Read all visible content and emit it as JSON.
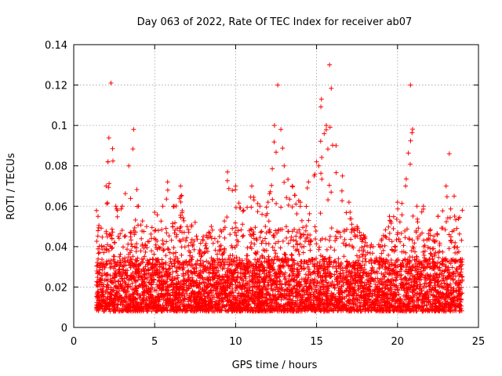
{
  "chart_data": {
    "type": "scatter",
    "title": "Day 063 of 2022, Rate Of TEC Index for receiver ab07",
    "xlabel": "GPS time / hours",
    "ylabel": "ROTI / TECUs",
    "xlim": [
      0,
      25
    ],
    "ylim": [
      0,
      0.14
    ],
    "xticks": [
      0,
      5,
      10,
      15,
      20,
      25
    ],
    "xtick_labels": [
      "0",
      "5",
      "10",
      "15",
      "20",
      "25"
    ],
    "yticks": [
      0,
      0.02,
      0.04,
      0.06,
      0.08,
      0.1,
      0.12,
      0.14
    ],
    "ytick_labels": [
      "0",
      "0.02",
      "0.04",
      "0.06",
      "0.08",
      "0.1",
      "0.12",
      "0.14"
    ],
    "grid": true,
    "marker": "+",
    "color": "#ff0000",
    "x_range_of_data": [
      1.4,
      24.0
    ],
    "envelope": [
      [
        1.5,
        0.055
      ],
      [
        2.0,
        0.07
      ],
      [
        2.3,
        0.121
      ],
      [
        2.6,
        0.06
      ],
      [
        3.0,
        0.06
      ],
      [
        3.4,
        0.08
      ],
      [
        3.7,
        0.098
      ],
      [
        4.0,
        0.06
      ],
      [
        4.5,
        0.05
      ],
      [
        5.0,
        0.057
      ],
      [
        5.5,
        0.06
      ],
      [
        5.8,
        0.072
      ],
      [
        6.2,
        0.06
      ],
      [
        6.6,
        0.07
      ],
      [
        7.0,
        0.05
      ],
      [
        7.5,
        0.052
      ],
      [
        8.0,
        0.045
      ],
      [
        8.5,
        0.05
      ],
      [
        9.0,
        0.045
      ],
      [
        9.5,
        0.077
      ],
      [
        10.0,
        0.07
      ],
      [
        10.5,
        0.058
      ],
      [
        11.0,
        0.07
      ],
      [
        11.5,
        0.06
      ],
      [
        12.0,
        0.062
      ],
      [
        12.4,
        0.1
      ],
      [
        12.6,
        0.12
      ],
      [
        13.0,
        0.08
      ],
      [
        13.5,
        0.07
      ],
      [
        14.0,
        0.062
      ],
      [
        14.5,
        0.072
      ],
      [
        15.0,
        0.082
      ],
      [
        15.3,
        0.113
      ],
      [
        15.6,
        0.1
      ],
      [
        15.8,
        0.13
      ],
      [
        16.2,
        0.09
      ],
      [
        16.6,
        0.075
      ],
      [
        17.0,
        0.062
      ],
      [
        17.5,
        0.05
      ],
      [
        18.0,
        0.045
      ],
      [
        18.5,
        0.04
      ],
      [
        19.0,
        0.043
      ],
      [
        19.5,
        0.055
      ],
      [
        20.0,
        0.062
      ],
      [
        20.5,
        0.07
      ],
      [
        20.8,
        0.12
      ],
      [
        21.2,
        0.06
      ],
      [
        21.6,
        0.06
      ],
      [
        22.0,
        0.048
      ],
      [
        22.5,
        0.055
      ],
      [
        23.0,
        0.07
      ],
      [
        23.2,
        0.086
      ],
      [
        23.5,
        0.065
      ],
      [
        24.0,
        0.058
      ]
    ],
    "baseline_min": 0.004
  }
}
